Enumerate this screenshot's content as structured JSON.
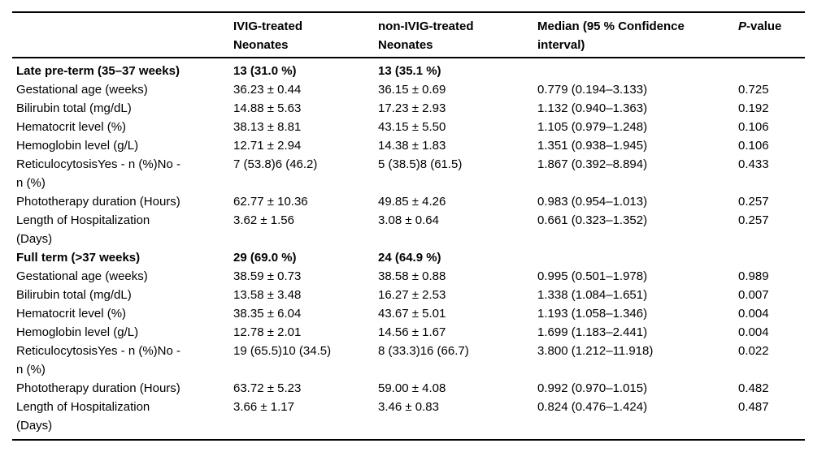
{
  "table": {
    "columns": [
      {
        "label": ""
      },
      {
        "label": "IVIG-treated\nNeonates"
      },
      {
        "label": "non-IVIG-treated\nNeonates"
      },
      {
        "label": "Median (95 % Confidence\ninterval)"
      },
      {
        "italic": "P",
        "rest": "-value"
      }
    ],
    "sections": [
      {
        "group": {
          "label": "Late pre-term (35–37 weeks)",
          "ivig": "13 (31.0 %)",
          "non_ivig": "13 (35.1 %)",
          "median_ci": "",
          "p": ""
        },
        "rows": [
          {
            "label": "Gestational age (weeks)",
            "ivig": "36.23 ± 0.44",
            "non_ivig": "36.15 ± 0.69",
            "median_ci": "0.779 (0.194–3.133)",
            "p": "0.725"
          },
          {
            "label": "Bilirubin total (mg/dL)",
            "ivig": "14.88 ± 5.63",
            "non_ivig": "17.23 ± 2.93",
            "median_ci": "1.132 (0.940–1.363)",
            "p": "0.192"
          },
          {
            "label": "Hematocrit level (%)",
            "ivig": "38.13 ± 8.81",
            "non_ivig": "43.15 ± 5.50",
            "median_ci": "1.105 (0.979–1.248)",
            "p": "0.106"
          },
          {
            "label": "Hemoglobin level (g/L)",
            "ivig": "12.71 ± 2.94",
            "non_ivig": "14.38 ± 1.83",
            "median_ci": "1.351 (0.938–1.945)",
            "p": "0.106"
          },
          {
            "label": "ReticulocytosisYes - n (%)No -\nn (%)",
            "ivig": "7 (53.8)6 (46.2)",
            "non_ivig": "5 (38.5)8 (61.5)",
            "median_ci": "1.867 (0.392–8.894)",
            "p": "0.433"
          },
          {
            "label": "Phototherapy duration (Hours)",
            "ivig": "62.77 ± 10.36",
            "non_ivig": "49.85 ± 4.26",
            "median_ci": "0.983 (0.954–1.013)",
            "p": "0.257"
          },
          {
            "label": "Length of Hospitalization\n(Days)",
            "ivig": "3.62 ± 1.56",
            "non_ivig": "3.08 ± 0.64",
            "median_ci": "0.661 (0.323–1.352)",
            "p": "0.257"
          }
        ]
      },
      {
        "group": {
          "label": "Full term (>37 weeks)",
          "ivig": "29 (69.0 %)",
          "non_ivig": "24 (64.9 %)",
          "median_ci": "",
          "p": ""
        },
        "rows": [
          {
            "label": "Gestational age (weeks)",
            "ivig": "38.59 ± 0.73",
            "non_ivig": "38.58 ± 0.88",
            "median_ci": "0.995 (0.501–1.978)",
            "p": "0.989"
          },
          {
            "label": "Bilirubin total (mg/dL)",
            "ivig": "13.58 ± 3.48",
            "non_ivig": "16.27 ± 2.53",
            "median_ci": "1.338 (1.084–1.651)",
            "p": "0.007"
          },
          {
            "label": "Hematocrit level (%)",
            "ivig": "38.35 ± 6.04",
            "non_ivig": "43.67 ± 5.01",
            "median_ci": "1.193 (1.058–1.346)",
            "p": "0.004"
          },
          {
            "label": "Hemoglobin level (g/L)",
            "ivig": "12.78 ± 2.01",
            "non_ivig": "14.56 ± 1.67",
            "median_ci": "1.699 (1.183–2.441)",
            "p": "0.004"
          },
          {
            "label": "ReticulocytosisYes - n (%)No -\nn (%)",
            "ivig": "19 (65.5)10 (34.5)",
            "non_ivig": "8 (33.3)16 (66.7)",
            "median_ci": "3.800 (1.212–11.918)",
            "p": "0.022"
          },
          {
            "label": "Phototherapy duration (Hours)",
            "ivig": "63.72 ± 5.23",
            "non_ivig": "59.00 ± 4.08",
            "median_ci": "0.992 (0.970–1.015)",
            "p": "0.482"
          },
          {
            "label": "Length of Hospitalization\n(Days)",
            "ivig": "3.66 ± 1.17",
            "non_ivig": "3.46 ± 0.83",
            "median_ci": "0.824 (0.476–1.424)",
            "p": "0.487"
          }
        ]
      }
    ]
  }
}
